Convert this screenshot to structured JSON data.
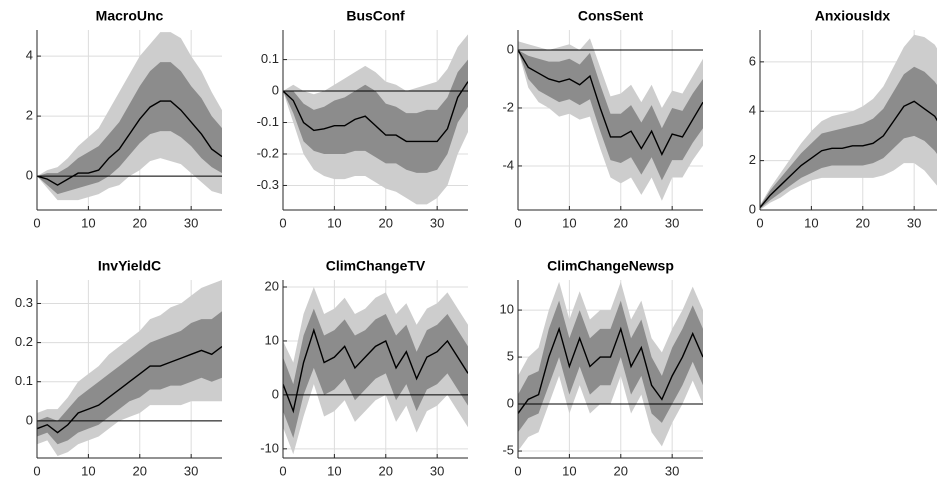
{
  "chart_data": [
    {
      "type": "band-line",
      "title": "MacroUnc",
      "x": [
        0,
        2,
        4,
        6,
        8,
        10,
        12,
        14,
        16,
        18,
        20,
        22,
        24,
        26,
        28,
        30,
        32,
        34,
        36
      ],
      "xlim": [
        0,
        36
      ],
      "xticks": [
        0,
        10,
        20,
        30
      ],
      "ylim": [
        -1.13,
        4.87
      ],
      "yticks": [
        0,
        2,
        4
      ],
      "grid": true,
      "outer_band": {
        "color": "#cdcdcd",
        "lower": [
          0,
          -0.4,
          -0.8,
          -0.8,
          -0.8,
          -0.7,
          -0.6,
          -0.4,
          -0.3,
          0.0,
          0.2,
          0.5,
          0.6,
          0.5,
          0.4,
          0.1,
          -0.2,
          -0.5,
          -0.6
        ],
        "upper": [
          0,
          0.2,
          0.3,
          0.6,
          1.0,
          1.3,
          1.6,
          2.2,
          2.8,
          3.4,
          4.0,
          4.4,
          4.8,
          4.8,
          4.6,
          4.0,
          3.5,
          2.8,
          2.2
        ]
      },
      "inner_band": {
        "color": "#8c8c8c",
        "lower": [
          0,
          -0.3,
          -0.6,
          -0.5,
          -0.4,
          -0.3,
          -0.2,
          0.0,
          0.3,
          0.7,
          1.1,
          1.4,
          1.5,
          1.5,
          1.3,
          1.0,
          0.6,
          0.3,
          0.1
        ],
        "upper": [
          0,
          0.1,
          0.1,
          0.3,
          0.6,
          0.8,
          1.0,
          1.4,
          1.8,
          2.4,
          3.0,
          3.5,
          3.8,
          3.8,
          3.5,
          3.0,
          2.6,
          2.0,
          1.6
        ]
      },
      "line": {
        "color": "#000000",
        "values": [
          0,
          -0.1,
          -0.3,
          -0.1,
          0.1,
          0.1,
          0.2,
          0.6,
          0.9,
          1.4,
          1.9,
          2.3,
          2.5,
          2.5,
          2.2,
          1.8,
          1.4,
          0.9,
          0.65
        ]
      }
    },
    {
      "type": "band-line",
      "title": "BusConf",
      "x": [
        0,
        2,
        4,
        6,
        8,
        10,
        12,
        14,
        16,
        18,
        20,
        22,
        24,
        26,
        28,
        30,
        32,
        34,
        36
      ],
      "xlim": [
        0,
        36
      ],
      "xticks": [
        0,
        10,
        20,
        30
      ],
      "ylim": [
        -0.378,
        0.194
      ],
      "yticks": [
        -0.3,
        -0.2,
        -0.1,
        0,
        0.1
      ],
      "grid": true,
      "outer_band": {
        "color": "#cdcdcd",
        "lower": [
          0,
          -0.1,
          -0.2,
          -0.25,
          -0.27,
          -0.28,
          -0.28,
          -0.27,
          -0.27,
          -0.29,
          -0.31,
          -0.32,
          -0.34,
          -0.36,
          -0.36,
          -0.34,
          -0.3,
          -0.2,
          -0.13
        ],
        "upper": [
          0,
          0.02,
          0.0,
          -0.01,
          0.0,
          0.02,
          0.04,
          0.06,
          0.08,
          0.06,
          0.03,
          0.02,
          0.0,
          0.01,
          0.02,
          0.03,
          0.07,
          0.14,
          0.18
        ]
      },
      "inner_band": {
        "color": "#8c8c8c",
        "lower": [
          0,
          -0.07,
          -0.16,
          -0.19,
          -0.2,
          -0.2,
          -0.2,
          -0.19,
          -0.19,
          -0.21,
          -0.23,
          -0.23,
          -0.25,
          -0.26,
          -0.26,
          -0.25,
          -0.2,
          -0.1,
          -0.05
        ],
        "upper": [
          0,
          0.0,
          -0.04,
          -0.06,
          -0.05,
          -0.03,
          -0.02,
          0.0,
          0.02,
          0.0,
          -0.04,
          -0.05,
          -0.07,
          -0.07,
          -0.06,
          -0.06,
          -0.02,
          0.06,
          0.1
        ]
      },
      "line": {
        "color": "#000000",
        "values": [
          0,
          -0.03,
          -0.1,
          -0.125,
          -0.12,
          -0.11,
          -0.11,
          -0.09,
          -0.08,
          -0.11,
          -0.14,
          -0.14,
          -0.16,
          -0.16,
          -0.16,
          -0.16,
          -0.12,
          -0.02,
          0.03
        ]
      }
    },
    {
      "type": "band-line",
      "title": "ConsSent",
      "x": [
        0,
        2,
        4,
        6,
        8,
        10,
        12,
        14,
        16,
        18,
        20,
        22,
        24,
        26,
        28,
        30,
        32,
        34,
        36
      ],
      "xlim": [
        0,
        36
      ],
      "xticks": [
        0,
        10,
        20,
        30
      ],
      "ylim": [
        -5.52,
        0.69
      ],
      "yticks": [
        -4,
        -2,
        0
      ],
      "grid": true,
      "outer_band": {
        "color": "#cdcdcd",
        "lower": [
          0,
          -1.3,
          -1.8,
          -2.0,
          -2.3,
          -2.2,
          -2.4,
          -2.3,
          -3.4,
          -4.4,
          -4.6,
          -4.4,
          -5.0,
          -4.4,
          -5.2,
          -4.4,
          -4.4,
          -3.8,
          -3.3
        ],
        "upper": [
          0.3,
          0.2,
          0.1,
          0.0,
          0.1,
          0.2,
          0.0,
          0.4,
          -0.6,
          -1.6,
          -1.5,
          -1.2,
          -1.8,
          -1.2,
          -2.0,
          -1.4,
          -1.5,
          -0.9,
          -0.3
        ]
      },
      "inner_band": {
        "color": "#8c8c8c",
        "lower": [
          0,
          -1.0,
          -1.4,
          -1.6,
          -1.8,
          -1.7,
          -1.9,
          -1.7,
          -2.8,
          -3.8,
          -3.9,
          -3.7,
          -4.3,
          -3.7,
          -4.5,
          -3.8,
          -3.8,
          -3.2,
          -2.7
        ],
        "upper": [
          0,
          -0.2,
          -0.3,
          -0.4,
          -0.4,
          -0.3,
          -0.5,
          -0.1,
          -1.2,
          -2.2,
          -2.2,
          -1.9,
          -2.5,
          -1.9,
          -2.7,
          -2.0,
          -2.1,
          -1.5,
          -1.0
        ]
      },
      "line": {
        "color": "#000000",
        "values": [
          0,
          -0.6,
          -0.8,
          -1.0,
          -1.1,
          -1.0,
          -1.2,
          -0.9,
          -2.0,
          -3.0,
          -3.0,
          -2.8,
          -3.4,
          -2.8,
          -3.6,
          -2.9,
          -3.0,
          -2.4,
          -1.8
        ]
      }
    },
    {
      "type": "band-line",
      "title": "AnxiousIdx",
      "x": [
        0,
        2,
        4,
        6,
        8,
        10,
        12,
        14,
        16,
        18,
        20,
        22,
        24,
        26,
        28,
        30,
        32,
        34,
        36
      ],
      "xlim": [
        0,
        36
      ],
      "xticks": [
        0,
        10,
        20,
        30
      ],
      "ylim": [
        0,
        7.29
      ],
      "yticks": [
        0,
        2,
        4,
        6
      ],
      "grid": true,
      "outer_band": {
        "color": "#cdcdcd",
        "lower": [
          0,
          0.3,
          0.5,
          0.8,
          1.0,
          1.2,
          1.3,
          1.3,
          1.3,
          1.3,
          1.3,
          1.3,
          1.4,
          1.6,
          1.9,
          1.9,
          1.6,
          1.1,
          0.6
        ],
        "upper": [
          0.2,
          0.9,
          1.5,
          2.1,
          2.7,
          3.2,
          3.6,
          3.8,
          3.9,
          4.0,
          4.2,
          4.5,
          5.0,
          5.8,
          6.6,
          7.1,
          7.0,
          6.7,
          6.0
        ]
      },
      "inner_band": {
        "color": "#8c8c8c",
        "lower": [
          0.05,
          0.4,
          0.7,
          1.0,
          1.3,
          1.5,
          1.7,
          1.8,
          1.8,
          1.8,
          1.8,
          1.9,
          2.1,
          2.5,
          2.9,
          3.0,
          2.8,
          2.4,
          1.8
        ],
        "upper": [
          0.15,
          0.8,
          1.3,
          1.8,
          2.3,
          2.7,
          3.1,
          3.2,
          3.3,
          3.4,
          3.5,
          3.7,
          4.1,
          4.8,
          5.5,
          5.8,
          5.6,
          5.2,
          4.6
        ]
      },
      "line": {
        "color": "#000000",
        "values": [
          0.1,
          0.6,
          1.0,
          1.4,
          1.8,
          2.1,
          2.4,
          2.5,
          2.5,
          2.6,
          2.6,
          2.7,
          3.0,
          3.6,
          4.2,
          4.4,
          4.1,
          3.8,
          3.1
        ]
      }
    },
    {
      "type": "band-line",
      "title": "InvYieldC",
      "x": [
        0,
        2,
        4,
        6,
        8,
        10,
        12,
        14,
        16,
        18,
        20,
        22,
        24,
        26,
        28,
        30,
        32,
        34,
        36
      ],
      "xlim": [
        0,
        36
      ],
      "xticks": [
        0,
        10,
        20,
        30
      ],
      "ylim": [
        -0.095,
        0.36
      ],
      "yticks": [
        0,
        0.1,
        0.2,
        0.3
      ],
      "grid": true,
      "outer_band": {
        "color": "#cdcdcd",
        "lower": [
          -0.06,
          -0.05,
          -0.09,
          -0.08,
          -0.06,
          -0.05,
          -0.04,
          -0.02,
          0.0,
          0.01,
          0.02,
          0.04,
          0.04,
          0.04,
          0.04,
          0.05,
          0.05,
          0.05,
          0.05
        ],
        "upper": [
          0.02,
          0.03,
          0.03,
          0.06,
          0.1,
          0.12,
          0.14,
          0.17,
          0.19,
          0.21,
          0.23,
          0.26,
          0.27,
          0.29,
          0.3,
          0.32,
          0.34,
          0.35,
          0.36
        ]
      },
      "inner_band": {
        "color": "#8c8c8c",
        "lower": [
          -0.04,
          -0.03,
          -0.06,
          -0.05,
          -0.03,
          -0.02,
          -0.01,
          0.01,
          0.03,
          0.05,
          0.06,
          0.08,
          0.08,
          0.09,
          0.09,
          0.1,
          0.11,
          0.1,
          0.11
        ],
        "upper": [
          0.0,
          0.01,
          0.0,
          0.03,
          0.06,
          0.08,
          0.1,
          0.12,
          0.14,
          0.16,
          0.18,
          0.2,
          0.21,
          0.22,
          0.23,
          0.25,
          0.26,
          0.26,
          0.28
        ]
      },
      "line": {
        "color": "#000000",
        "values": [
          -0.02,
          -0.01,
          -0.03,
          -0.01,
          0.02,
          0.03,
          0.04,
          0.06,
          0.08,
          0.1,
          0.12,
          0.14,
          0.14,
          0.15,
          0.16,
          0.17,
          0.18,
          0.17,
          0.19
        ]
      }
    },
    {
      "type": "band-line",
      "title": "ClimChangeTV",
      "x": [
        0,
        2,
        4,
        6,
        8,
        10,
        12,
        14,
        16,
        18,
        20,
        22,
        24,
        26,
        28,
        30,
        32,
        34,
        36
      ],
      "xlim": [
        0,
        36
      ],
      "xticks": [
        0,
        10,
        20,
        30
      ],
      "ylim": [
        -11.7,
        21.3
      ],
      "yticks": [
        -10,
        0,
        10,
        20
      ],
      "grid": true,
      "outer_band": {
        "color": "#cdcdcd",
        "lower": [
          -6,
          -11,
          -4,
          2,
          -4,
          -3,
          -1,
          -5,
          -3,
          -1,
          0,
          -5,
          -2,
          -7,
          -3,
          -2,
          0,
          -3,
          -6
        ],
        "upper": [
          10,
          6,
          15,
          20,
          15,
          16,
          18,
          15,
          16,
          18,
          19,
          15,
          17,
          13,
          16,
          17,
          19,
          16,
          13
        ]
      },
      "inner_band": {
        "color": "#8c8c8c",
        "lower": [
          -3,
          -8,
          0,
          5,
          0,
          1,
          3,
          -1,
          1,
          3,
          4,
          -1,
          2,
          -3,
          1,
          2,
          4,
          1,
          -2
        ],
        "upper": [
          7,
          2,
          11,
          16,
          11,
          12,
          14,
          11,
          12,
          14,
          15,
          11,
          13,
          8,
          12,
          13,
          15,
          12,
          9
        ]
      },
      "line": {
        "color": "#000000",
        "values": [
          2,
          -3,
          6,
          12,
          6,
          7,
          9,
          5,
          7,
          9,
          10,
          5,
          8,
          3,
          7,
          8,
          10,
          7,
          4
        ]
      }
    },
    {
      "type": "band-line",
      "title": "ClimChangeNewsp",
      "x": [
        0,
        2,
        4,
        6,
        8,
        10,
        12,
        14,
        16,
        18,
        20,
        22,
        24,
        26,
        28,
        30,
        32,
        34,
        36
      ],
      "xlim": [
        0,
        36
      ],
      "xticks": [
        0,
        10,
        20,
        30
      ],
      "ylim": [
        -5.74,
        13.2
      ],
      "yticks": [
        -5,
        0,
        5,
        10
      ],
      "grid": true,
      "outer_band": {
        "color": "#cdcdcd",
        "lower": [
          -5,
          -3.5,
          -3,
          0,
          3,
          -1,
          2,
          -1,
          0,
          0,
          3,
          -1,
          1,
          -3,
          -4.5,
          -2,
          0,
          2.5,
          0
        ],
        "upper": [
          3,
          5,
          6,
          10,
          13,
          9,
          12,
          9,
          10,
          10,
          13,
          9,
          11,
          7,
          5.5,
          8,
          10,
          12.5,
          10
        ]
      },
      "inner_band": {
        "color": "#8c8c8c",
        "lower": [
          -3,
          -1.5,
          -1,
          2,
          5,
          1,
          4,
          1,
          2,
          2,
          5,
          1,
          3,
          -1,
          -2,
          0,
          2,
          4.5,
          2
        ],
        "upper": [
          1,
          3,
          3.5,
          8,
          11,
          7,
          10,
          7,
          8,
          8,
          11,
          7,
          9,
          5,
          3,
          6,
          8,
          10.5,
          8
        ]
      },
      "line": {
        "color": "#000000",
        "values": [
          -1,
          0.5,
          1,
          5,
          8,
          4,
          7,
          4,
          5,
          5,
          8,
          4,
          6,
          2,
          0.5,
          3,
          5,
          7.5,
          5
        ]
      }
    }
  ]
}
